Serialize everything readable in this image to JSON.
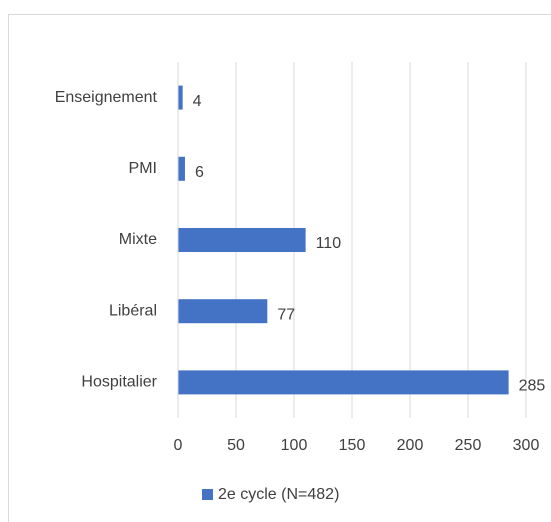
{
  "chart_data": {
    "type": "bar",
    "orientation": "horizontal",
    "categories": [
      "Enseignement",
      "PMI",
      "Mixte",
      "Libéral",
      "Hospitalier"
    ],
    "series": [
      {
        "name": "2e cycle (N=482)",
        "color": "#4472c4",
        "values": [
          4,
          6,
          110,
          77,
          285
        ]
      }
    ],
    "xlim": [
      0,
      300
    ],
    "xticks": [
      0,
      50,
      100,
      150,
      200,
      250,
      300
    ],
    "grid": true,
    "legend": "bottom"
  }
}
